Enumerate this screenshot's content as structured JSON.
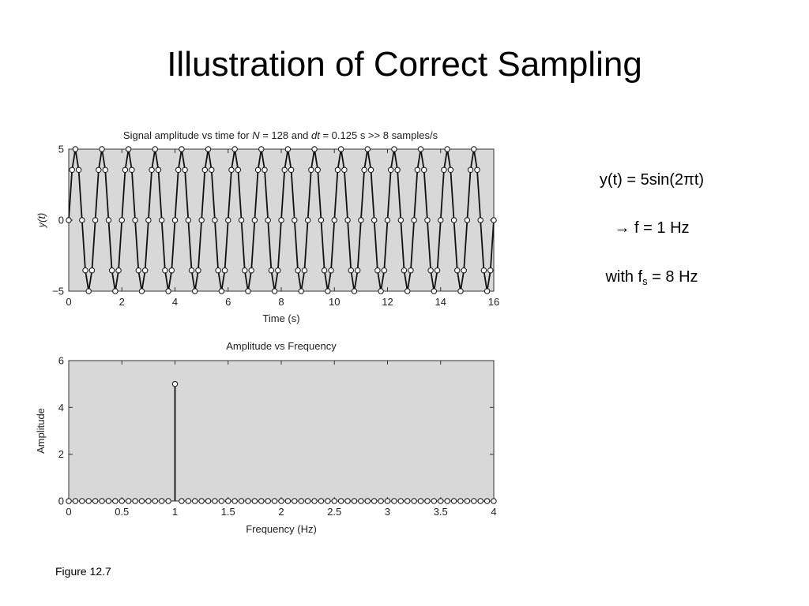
{
  "slide": {
    "title": "Illustration of Correct Sampling",
    "caption": "Figure 12.7",
    "equation": "y(t) = 5sin(2πt)",
    "frequency_line": "→ f = 1 Hz",
    "sampling_prefix": "with f",
    "sampling_sub": "s",
    "sampling_suffix": " = 8 Hz"
  },
  "chart_data": [
    {
      "type": "line",
      "title_parts": {
        "a": "Signal amplitude vs time for ",
        "n": "N",
        "b": " = 128 and ",
        "dt": "dt",
        "c": " = 0.125 s >> 8 samples/s"
      },
      "title": "Signal amplitude vs time for N = 128 and dt = 0.125 s >> 8 samples/s",
      "xlabel": "Time (s)",
      "ylabel": "y(t)",
      "xlim": [
        0,
        16
      ],
      "ylim": [
        -5,
        5
      ],
      "xticks": [
        "0",
        "2",
        "4",
        "6",
        "8",
        "10",
        "12",
        "14",
        "16"
      ],
      "xtick_values": [
        0,
        2,
        4,
        6,
        8,
        10,
        12,
        14,
        16
      ],
      "yticks": [
        "−5",
        "0",
        "5"
      ],
      "ytick_values": [
        -5,
        0,
        5
      ],
      "grid": false,
      "markers": "open circles",
      "series": [
        {
          "sample_period": 0.125,
          "amplitude": 5,
          "frequency": 1,
          "y": [
            0,
            3.54,
            5,
            3.54,
            0,
            -3.54,
            -5,
            -3.54,
            0,
            3.54,
            5,
            3.54,
            0,
            -3.54,
            -5,
            -3.54,
            0,
            3.54,
            5,
            3.54,
            0,
            -3.54,
            -5,
            -3.54,
            0,
            3.54,
            5,
            3.54,
            0,
            -3.54,
            -5,
            -3.54,
            0,
            3.54,
            5,
            3.54,
            0,
            -3.54,
            -5,
            -3.54,
            0,
            3.54,
            5,
            3.54,
            0,
            -3.54,
            -5,
            -3.54,
            0,
            3.54,
            5,
            3.54,
            0,
            -3.54,
            -5,
            -3.54,
            0,
            3.54,
            5,
            3.54,
            0,
            -3.54,
            -5,
            -3.54,
            0,
            3.54,
            5,
            3.54,
            0,
            -3.54,
            -5,
            -3.54,
            0,
            3.54,
            5,
            3.54,
            0,
            -3.54,
            -5,
            -3.54,
            0,
            3.54,
            5,
            3.54,
            0,
            -3.54,
            -5,
            -3.54,
            0,
            3.54,
            5,
            3.54,
            0,
            -3.54,
            -5,
            -3.54,
            0,
            3.54,
            5,
            3.54,
            0,
            -3.54,
            -5,
            -3.54,
            0,
            3.54,
            5,
            3.54,
            0,
            -3.54,
            -5,
            -3.54,
            0,
            3.54,
            5,
            3.54,
            0,
            -3.54,
            -5,
            -3.54,
            0,
            3.54,
            5,
            3.54,
            0,
            -3.54,
            -5,
            -3.54,
            0
          ]
        }
      ]
    },
    {
      "type": "stem",
      "title": "Amplitude vs Frequency",
      "xlabel": "Frequency (Hz)",
      "ylabel": "Amplitude",
      "xlim": [
        0,
        4
      ],
      "ylim": [
        0,
        6
      ],
      "xticks": [
        "0",
        "0.5",
        "1",
        "1.5",
        "2",
        "2.5",
        "3",
        "3.5",
        "4"
      ],
      "xtick_values": [
        0,
        0.5,
        1,
        1.5,
        2,
        2.5,
        3,
        3.5,
        4
      ],
      "yticks": [
        "0",
        "2",
        "4",
        "6"
      ],
      "ytick_values": [
        0,
        2,
        4,
        6
      ],
      "grid": false,
      "markers": "open circles",
      "series": [
        {
          "frequency_step": 0.0625,
          "values": [
            0,
            0,
            0,
            0,
            0,
            0,
            0,
            0,
            0,
            0,
            0,
            0,
            0,
            0,
            0,
            0,
            5,
            0,
            0,
            0,
            0,
            0,
            0,
            0,
            0,
            0,
            0,
            0,
            0,
            0,
            0,
            0,
            0,
            0,
            0,
            0,
            0,
            0,
            0,
            0,
            0,
            0,
            0,
            0,
            0,
            0,
            0,
            0,
            0,
            0,
            0,
            0,
            0,
            0,
            0,
            0,
            0,
            0,
            0,
            0,
            0,
            0,
            0,
            0,
            0
          ]
        }
      ]
    }
  ]
}
